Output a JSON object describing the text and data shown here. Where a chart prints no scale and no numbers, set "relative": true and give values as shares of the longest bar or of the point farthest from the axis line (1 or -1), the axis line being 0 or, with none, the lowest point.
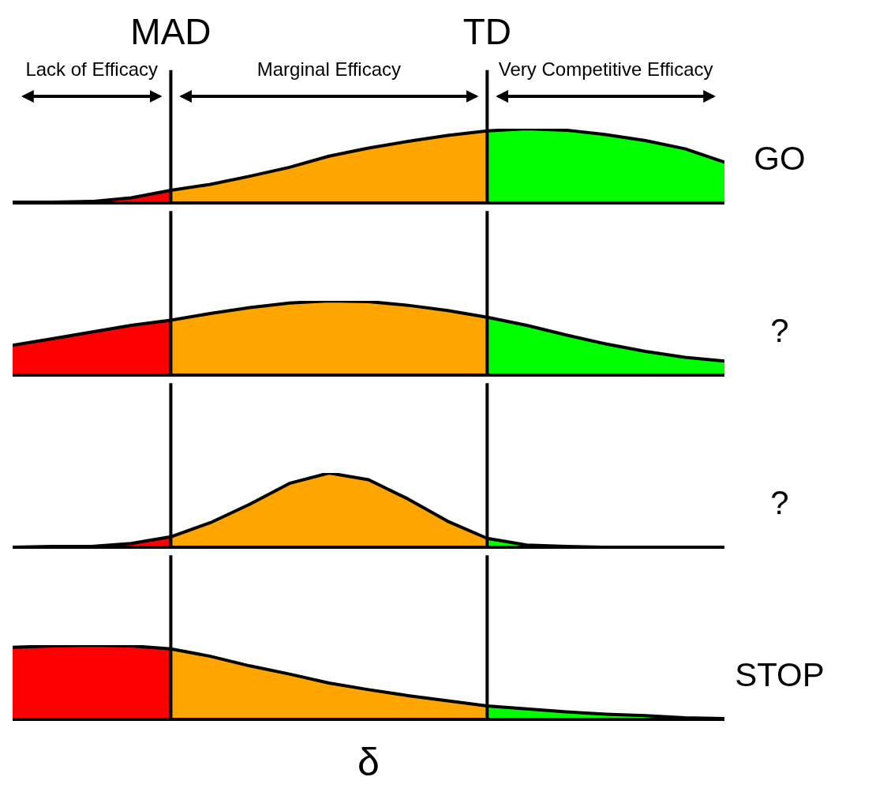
{
  "chart_data": [
    {
      "type": "area",
      "relative": true,
      "categories": [
        null,
        null,
        null,
        null,
        "MAD",
        null,
        null,
        null,
        null,
        null,
        null,
        null,
        "TD",
        null,
        null,
        null,
        null,
        null,
        null
      ],
      "annotations": [
        "Lack of Efficacy",
        "Marginal Efficacy",
        "Very Competitive Efficacy",
        "GO"
      ],
      "ref_lines": [
        {
          "axis": "x",
          "value": "MAD"
        },
        {
          "axis": "x",
          "value": "TD"
        }
      ],
      "series": [
        {
          "type": "line",
          "color": "#000000",
          "values": [
            0.01,
            0.01,
            0.02,
            0.07,
            0.17,
            0.25,
            0.36,
            0.48,
            0.63,
            0.74,
            0.83,
            0.91,
            0.97,
            1,
            0.98,
            0.92,
            0.84,
            0.73,
            0.55
          ]
        },
        {
          "color": "#ff0000",
          "values": [
            0.01,
            0.01,
            0.02,
            0.07,
            0.17,
            null,
            null,
            null,
            null,
            null,
            null,
            null,
            null,
            null,
            null,
            null,
            null,
            null,
            null
          ]
        },
        {
          "color": "#ffa500",
          "values": [
            null,
            null,
            null,
            null,
            0.17,
            0.25,
            0.36,
            0.48,
            0.63,
            0.74,
            0.83,
            0.91,
            0.97,
            null,
            null,
            null,
            null,
            null,
            null
          ]
        },
        {
          "color": "#00ff00",
          "values": [
            null,
            null,
            null,
            null,
            null,
            null,
            null,
            null,
            null,
            null,
            null,
            null,
            0.97,
            1,
            0.98,
            0.92,
            0.84,
            0.73,
            0.55
          ]
        }
      ]
    },
    {
      "type": "area",
      "relative": true,
      "tick_labels": false,
      "categories": [
        null,
        null,
        null,
        null,
        "MAD",
        null,
        null,
        null,
        null,
        null,
        null,
        null,
        "TD",
        null,
        null,
        null,
        null,
        null,
        null
      ],
      "annotations": [
        "?"
      ],
      "ref_lines": [
        {
          "axis": "x",
          "value": "MAD"
        },
        {
          "axis": "x",
          "value": "TD"
        }
      ],
      "series": [
        {
          "type": "line",
          "color": "#000000",
          "values": [
            0.4,
            0.49,
            0.58,
            0.67,
            0.74,
            0.83,
            0.91,
            0.97,
            1,
            0.99,
            0.94,
            0.87,
            0.78,
            0.67,
            0.54,
            0.42,
            0.32,
            0.24,
            0.19
          ]
        },
        {
          "color": "#ff0000",
          "values": [
            0.4,
            0.49,
            0.58,
            0.67,
            0.74,
            null,
            null,
            null,
            null,
            null,
            null,
            null,
            null,
            null,
            null,
            null,
            null,
            null,
            null
          ]
        },
        {
          "color": "#ffa500",
          "values": [
            null,
            null,
            null,
            null,
            0.74,
            0.83,
            0.91,
            0.97,
            1,
            0.99,
            0.94,
            0.87,
            0.78,
            null,
            null,
            null,
            null,
            null,
            null
          ]
        },
        {
          "color": "#00ff00",
          "values": [
            null,
            null,
            null,
            null,
            null,
            null,
            null,
            null,
            null,
            null,
            null,
            null,
            0.78,
            0.67,
            0.54,
            0.42,
            0.32,
            0.24,
            0.19
          ]
        }
      ]
    },
    {
      "type": "area",
      "relative": true,
      "tick_labels": false,
      "categories": [
        null,
        null,
        null,
        null,
        "MAD",
        null,
        null,
        null,
        null,
        null,
        null,
        null,
        "TD",
        null,
        null,
        null,
        null,
        null,
        null
      ],
      "annotations": [
        "?"
      ],
      "ref_lines": [
        {
          "axis": "x",
          "value": "MAD"
        },
        {
          "axis": "x",
          "value": "TD"
        }
      ],
      "series": [
        {
          "type": "line",
          "color": "#000000",
          "values": [
            0,
            0.01,
            0.01,
            0.05,
            0.14,
            0.33,
            0.58,
            0.86,
            1,
            0.91,
            0.65,
            0.35,
            0.12,
            0.03,
            0.01,
            0,
            0,
            0,
            0
          ]
        },
        {
          "color": "#ff0000",
          "values": [
            0,
            0.01,
            0.01,
            0.05,
            0.14,
            null,
            null,
            null,
            null,
            null,
            null,
            null,
            null,
            null,
            null,
            null,
            null,
            null,
            null
          ]
        },
        {
          "color": "#ffa500",
          "values": [
            null,
            null,
            null,
            null,
            0.14,
            0.33,
            0.58,
            0.86,
            1,
            0.91,
            0.65,
            0.35,
            0.12,
            null,
            null,
            null,
            null,
            null,
            null
          ]
        },
        {
          "color": "#00ff00",
          "values": [
            null,
            null,
            null,
            null,
            null,
            null,
            null,
            null,
            null,
            null,
            null,
            null,
            0.12,
            0.03,
            0.01,
            0,
            0,
            0,
            0
          ]
        }
      ]
    },
    {
      "type": "area",
      "relative": true,
      "tick_labels": false,
      "xlabel": "δ",
      "categories": [
        null,
        null,
        null,
        null,
        "MAD",
        null,
        null,
        null,
        null,
        null,
        null,
        null,
        "TD",
        null,
        null,
        null,
        null,
        null,
        null
      ],
      "annotations": [
        "STOP"
      ],
      "ref_lines": [
        {
          "axis": "x",
          "value": "MAD"
        },
        {
          "axis": "x",
          "value": "TD"
        }
      ],
      "series": [
        {
          "type": "line",
          "color": "#000000",
          "values": [
            0.97,
            0.99,
            1,
            0.99,
            0.95,
            0.85,
            0.72,
            0.61,
            0.49,
            0.4,
            0.32,
            0.25,
            0.18,
            0.14,
            0.1,
            0.07,
            0.05,
            0.02,
            0.01
          ]
        },
        {
          "color": "#ff0000",
          "values": [
            0.97,
            0.99,
            1,
            0.99,
            0.95,
            null,
            null,
            null,
            null,
            null,
            null,
            null,
            null,
            null,
            null,
            null,
            null,
            null,
            null
          ]
        },
        {
          "color": "#ffa500",
          "values": [
            null,
            null,
            null,
            null,
            0.95,
            0.85,
            0.72,
            0.61,
            0.49,
            0.4,
            0.32,
            0.25,
            0.18,
            null,
            null,
            null,
            null,
            null,
            null
          ]
        },
        {
          "color": "#00ff00",
          "values": [
            null,
            null,
            null,
            null,
            null,
            null,
            null,
            null,
            null,
            null,
            null,
            null,
            0.18,
            0.14,
            0.1,
            0.07,
            0.05,
            0.02,
            0.01
          ]
        }
      ]
    }
  ]
}
